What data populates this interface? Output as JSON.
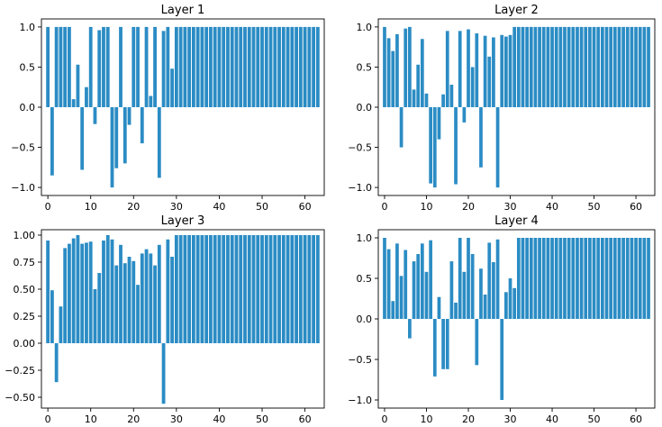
{
  "chart_data": [
    {
      "type": "bar",
      "title": "Layer 1",
      "xlabel": "",
      "ylabel": "",
      "xlim": [
        -1.5,
        64.5
      ],
      "ylim": [
        -1.1,
        1.1
      ],
      "xticks": [
        0,
        10,
        20,
        30,
        40,
        50,
        60
      ],
      "yticks": [
        -1.0,
        -0.5,
        0.0,
        0.5,
        1.0
      ],
      "ytick_labels": [
        "−1.0",
        "−0.5",
        "0.0",
        "0.5",
        "1.0"
      ],
      "bar_color": "#2b8cc4",
      "grid": false,
      "x": [
        0,
        1,
        2,
        3,
        4,
        5,
        6,
        7,
        8,
        9,
        10,
        11,
        12,
        13,
        14,
        15,
        16,
        17,
        18,
        19,
        20,
        21,
        22,
        23,
        24,
        25,
        26,
        27,
        28,
        29,
        30,
        31,
        32,
        33,
        34,
        35,
        36,
        37,
        38,
        39,
        40,
        41,
        42,
        43,
        44,
        45,
        46,
        47,
        48,
        49,
        50,
        51,
        52,
        53,
        54,
        55,
        56,
        57,
        58,
        59,
        60,
        61,
        62,
        63
      ],
      "values": [
        1.0,
        -0.85,
        1.0,
        1.0,
        1.0,
        1.0,
        0.1,
        0.53,
        -0.78,
        0.25,
        1.0,
        -0.21,
        0.96,
        1.0,
        1.0,
        -1.0,
        -0.76,
        1.0,
        -0.7,
        -0.22,
        1.0,
        1.0,
        -0.45,
        1.0,
        0.14,
        1.0,
        -0.88,
        0.95,
        1.0,
        0.48,
        1.0,
        1.0,
        1.0,
        1.0,
        1.0,
        1.0,
        1.0,
        1.0,
        1.0,
        1.0,
        1.0,
        1.0,
        1.0,
        1.0,
        1.0,
        1.0,
        1.0,
        1.0,
        1.0,
        1.0,
        1.0,
        1.0,
        1.0,
        1.0,
        1.0,
        1.0,
        1.0,
        1.0,
        1.0,
        1.0,
        1.0,
        1.0,
        1.0,
        1.0
      ]
    },
    {
      "type": "bar",
      "title": "Layer 2",
      "xlabel": "",
      "ylabel": "",
      "xlim": [
        -1.5,
        64.5
      ],
      "ylim": [
        -1.1,
        1.1
      ],
      "xticks": [
        0,
        10,
        20,
        30,
        40,
        50,
        60
      ],
      "yticks": [
        -1.0,
        -0.5,
        0.0,
        0.5,
        1.0
      ],
      "ytick_labels": [
        "−1.0",
        "−0.5",
        "0.0",
        "0.5",
        "1.0"
      ],
      "bar_color": "#2b8cc4",
      "grid": false,
      "x": [
        0,
        1,
        2,
        3,
        4,
        5,
        6,
        7,
        8,
        9,
        10,
        11,
        12,
        13,
        14,
        15,
        16,
        17,
        18,
        19,
        20,
        21,
        22,
        23,
        24,
        25,
        26,
        27,
        28,
        29,
        30,
        31,
        32,
        33,
        34,
        35,
        36,
        37,
        38,
        39,
        40,
        41,
        42,
        43,
        44,
        45,
        46,
        47,
        48,
        49,
        50,
        51,
        52,
        53,
        54,
        55,
        56,
        57,
        58,
        59,
        60,
        61,
        62,
        63
      ],
      "values": [
        1.0,
        0.86,
        0.7,
        0.91,
        -0.5,
        0.98,
        1.0,
        0.22,
        0.53,
        0.85,
        0.17,
        -0.95,
        -1.0,
        -0.4,
        0.16,
        0.95,
        0.28,
        -0.96,
        0.95,
        -0.19,
        0.97,
        0.5,
        0.92,
        -0.75,
        0.89,
        0.63,
        0.87,
        -1.0,
        0.9,
        0.88,
        0.9,
        1.0,
        1.0,
        1.0,
        1.0,
        1.0,
        1.0,
        1.0,
        1.0,
        1.0,
        1.0,
        1.0,
        1.0,
        1.0,
        1.0,
        1.0,
        1.0,
        1.0,
        1.0,
        1.0,
        1.0,
        1.0,
        1.0,
        1.0,
        1.0,
        1.0,
        1.0,
        1.0,
        1.0,
        1.0,
        1.0,
        1.0,
        1.0,
        1.0
      ]
    },
    {
      "type": "bar",
      "title": "Layer 3",
      "xlabel": "",
      "ylabel": "",
      "xlim": [
        -1.5,
        64.5
      ],
      "ylim": [
        -0.6,
        1.05
      ],
      "xticks": [
        0,
        10,
        20,
        30,
        40,
        50,
        60
      ],
      "yticks": [
        -0.5,
        -0.25,
        0.0,
        0.25,
        0.5,
        0.75,
        1.0
      ],
      "ytick_labels": [
        "−0.50",
        "−0.25",
        "0.00",
        "0.25",
        "0.50",
        "0.75",
        "1.00"
      ],
      "bar_color": "#2b8cc4",
      "grid": false,
      "x": [
        0,
        1,
        2,
        3,
        4,
        5,
        6,
        7,
        8,
        9,
        10,
        11,
        12,
        13,
        14,
        15,
        16,
        17,
        18,
        19,
        20,
        21,
        22,
        23,
        24,
        25,
        26,
        27,
        28,
        29,
        30,
        31,
        32,
        33,
        34,
        35,
        36,
        37,
        38,
        39,
        40,
        41,
        42,
        43,
        44,
        45,
        46,
        47,
        48,
        49,
        50,
        51,
        52,
        53,
        54,
        55,
        56,
        57,
        58,
        59,
        60,
        61,
        62,
        63
      ],
      "values": [
        0.95,
        0.49,
        -0.36,
        0.34,
        0.88,
        0.92,
        0.97,
        1.0,
        0.92,
        0.93,
        0.94,
        0.5,
        0.65,
        0.95,
        1.0,
        0.96,
        0.72,
        0.91,
        0.74,
        0.8,
        0.76,
        0.54,
        0.83,
        0.87,
        0.83,
        0.72,
        0.91,
        -0.56,
        0.96,
        0.8,
        1.0,
        1.0,
        1.0,
        1.0,
        1.0,
        1.0,
        1.0,
        1.0,
        1.0,
        1.0,
        1.0,
        1.0,
        1.0,
        1.0,
        1.0,
        1.0,
        1.0,
        1.0,
        1.0,
        1.0,
        1.0,
        1.0,
        1.0,
        1.0,
        1.0,
        1.0,
        1.0,
        1.0,
        1.0,
        1.0,
        1.0,
        1.0,
        1.0,
        1.0
      ]
    },
    {
      "type": "bar",
      "title": "Layer 4",
      "xlabel": "",
      "ylabel": "",
      "xlim": [
        -1.5,
        64.5
      ],
      "ylim": [
        -1.1,
        1.1
      ],
      "xticks": [
        0,
        10,
        20,
        30,
        40,
        50,
        60
      ],
      "yticks": [
        -1.0,
        -0.5,
        0.0,
        0.5,
        1.0
      ],
      "ytick_labels": [
        "−1.0",
        "−0.5",
        "0.0",
        "0.5",
        "1.0"
      ],
      "bar_color": "#2b8cc4",
      "grid": false,
      "x": [
        0,
        1,
        2,
        3,
        4,
        5,
        6,
        7,
        8,
        9,
        10,
        11,
        12,
        13,
        14,
        15,
        16,
        17,
        18,
        19,
        20,
        21,
        22,
        23,
        24,
        25,
        26,
        27,
        28,
        29,
        30,
        31,
        32,
        33,
        34,
        35,
        36,
        37,
        38,
        39,
        40,
        41,
        42,
        43,
        44,
        45,
        46,
        47,
        48,
        49,
        50,
        51,
        52,
        53,
        54,
        55,
        56,
        57,
        58,
        59,
        60,
        61,
        62,
        63
      ],
      "values": [
        1.0,
        0.86,
        0.22,
        0.93,
        0.53,
        0.85,
        -0.24,
        0.71,
        0.8,
        0.93,
        0.58,
        0.97,
        -0.71,
        0.27,
        -0.62,
        -0.62,
        0.71,
        0.2,
        1.0,
        0.58,
        1.0,
        0.8,
        -0.57,
        0.62,
        0.3,
        0.94,
        0.7,
        0.98,
        -1.0,
        0.33,
        0.5,
        0.38,
        1.0,
        1.0,
        1.0,
        1.0,
        1.0,
        1.0,
        1.0,
        1.0,
        1.0,
        1.0,
        1.0,
        1.0,
        1.0,
        1.0,
        1.0,
        1.0,
        1.0,
        1.0,
        1.0,
        1.0,
        1.0,
        1.0,
        1.0,
        1.0,
        1.0,
        1.0,
        1.0,
        1.0,
        1.0,
        1.0,
        1.0,
        1.0
      ]
    }
  ]
}
